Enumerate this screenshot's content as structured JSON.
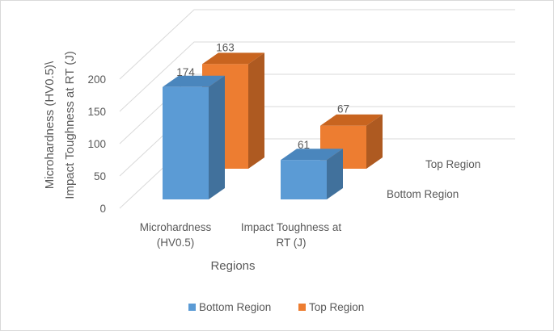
{
  "chart_data": {
    "type": "bar",
    "categories": [
      "Microhardness (HV0.5)",
      "Impact Toughness at RT (J)"
    ],
    "category_lines": [
      [
        "Microhardness",
        "(HV0.5)"
      ],
      [
        "Impact Toughness at",
        "RT (J)"
      ]
    ],
    "series": [
      {
        "name": "Bottom Region",
        "values": [
          174,
          61
        ],
        "color": "#5b9bd5",
        "side_color": "#41719c",
        "top_color": "#4a86bd"
      },
      {
        "name": "Top Region",
        "values": [
          163,
          67
        ],
        "color": "#ed7d31",
        "side_color": "#ae5a21",
        "top_color": "#c8641f"
      }
    ],
    "ylabel_lines": [
      "Microhardness (HV0.5)\\",
      "Impact Toughness at RT (J)"
    ],
    "xlabel": "Regions",
    "yticks": [
      0,
      50,
      100,
      150,
      200
    ],
    "ylim": [
      0,
      200
    ],
    "grid": true,
    "legend": "bottom",
    "depth_axis_labels": [
      "Top Region",
      "Bottom Region"
    ],
    "view": "3d-clustered-column"
  }
}
